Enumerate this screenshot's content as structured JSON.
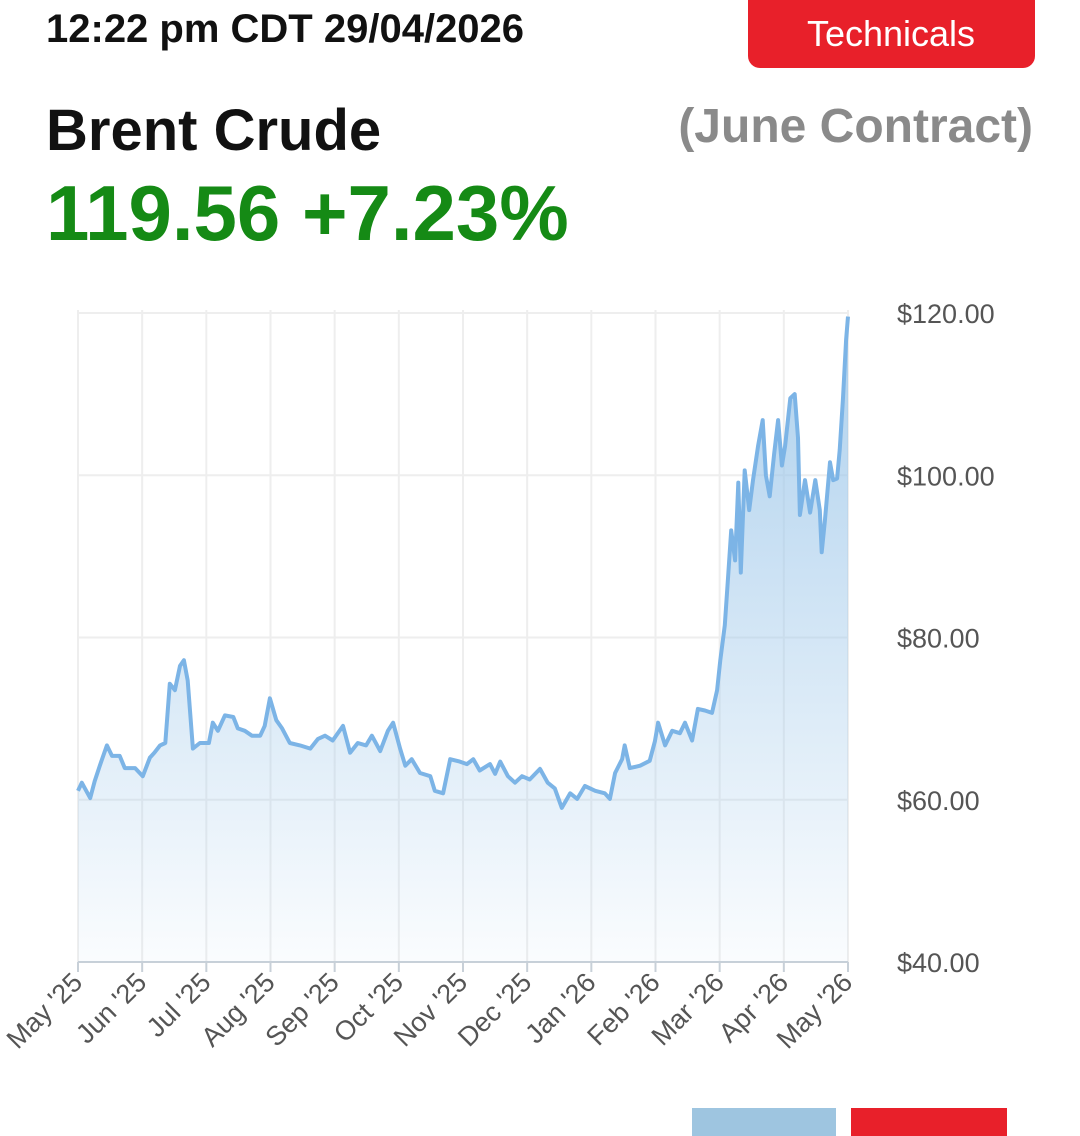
{
  "header": {
    "time": "12:22 pm CDT 29/04/2026",
    "button": "Technicals",
    "title": "Brent Crude",
    "contract": "(June Contract)",
    "price": "119.56",
    "change": "+7.23%"
  },
  "chart_data": {
    "type": "area",
    "color": "#7cb4e6",
    "grid": true,
    "x": [
      0,
      0.06,
      0.19,
      0.26,
      0.34,
      0.45,
      0.53,
      0.65,
      0.73,
      0.89,
      1.01,
      1.12,
      1.19,
      1.28,
      1.36,
      1.43,
      1.51,
      1.59,
      1.65,
      1.71,
      1.79,
      1.9,
      2.04,
      2.1,
      2.18,
      2.29,
      2.42,
      2.49,
      2.6,
      2.71,
      2.84,
      2.91,
      2.99,
      3.09,
      3.18,
      3.3,
      3.46,
      3.62,
      3.74,
      3.85,
      3.97,
      4.13,
      4.24,
      4.36,
      4.49,
      4.58,
      4.71,
      4.83,
      4.91,
      5.02,
      5.1,
      5.2,
      5.33,
      5.49,
      5.56,
      5.69,
      5.8,
      5.95,
      6.06,
      6.16,
      6.26,
      6.42,
      6.5,
      6.58,
      6.7,
      6.81,
      6.92,
      7.04,
      7.2,
      7.32,
      7.43,
      7.54,
      7.67,
      7.78,
      7.9,
      8.06,
      8.21,
      8.29,
      8.37,
      8.48,
      8.52,
      8.6,
      8.76,
      8.91,
      8.99,
      9.04,
      9.15,
      9.26,
      9.38,
      9.46,
      9.57,
      9.66,
      9.77,
      9.88,
      9.96,
      10.01,
      10.08,
      10.13,
      10.18,
      10.24,
      10.29,
      10.33,
      10.39,
      10.46,
      10.52,
      10.6,
      10.67,
      10.72,
      10.78,
      10.85,
      10.91,
      10.97,
      11.02,
      11.1,
      11.17,
      11.22,
      11.25,
      11.33,
      11.41,
      11.49,
      11.56,
      11.59,
      11.64,
      11.72,
      11.77,
      11.83,
      11.87,
      11.92,
      11.97,
      12
    ],
    "values": [
      61.1,
      62.1,
      60.2,
      62.3,
      64.2,
      66.7,
      65.4,
      65.4,
      63.9,
      63.9,
      62.9,
      65.2,
      65.8,
      66.7,
      67.0,
      74.3,
      73.5,
      76.5,
      77.2,
      74.7,
      66.3,
      67.0,
      67.0,
      69.5,
      68.5,
      70.4,
      70.2,
      68.8,
      68.5,
      67.9,
      67.9,
      69.1,
      72.5,
      69.8,
      68.8,
      67.0,
      66.7,
      66.3,
      67.5,
      67.9,
      67.3,
      69.1,
      65.8,
      67.0,
      66.7,
      67.9,
      66.0,
      68.5,
      69.5,
      66.3,
      64.2,
      65.0,
      63.3,
      62.9,
      61.1,
      60.8,
      65.0,
      64.7,
      64.4,
      65.0,
      63.6,
      64.4,
      63.2,
      64.7,
      62.9,
      62.1,
      62.9,
      62.5,
      63.8,
      62.1,
      61.4,
      59.0,
      60.8,
      60.1,
      61.7,
      61.1,
      60.8,
      60.1,
      63.3,
      65.0,
      66.7,
      63.9,
      64.2,
      64.8,
      67.2,
      69.5,
      66.7,
      68.5,
      68.2,
      69.5,
      67.3,
      71.2,
      71.0,
      70.7,
      73.5,
      77.2,
      81.5,
      87.3,
      93.2,
      89.5,
      99.1,
      88.0,
      100.6,
      95.7,
      99.4,
      103.7,
      106.8,
      100.0,
      97.4,
      102.7,
      106.8,
      101.2,
      103.6,
      109.5,
      110.0,
      104.6,
      95.1,
      99.4,
      95.4,
      99.4,
      95.7,
      90.5,
      94.4,
      101.6,
      99.4,
      99.6,
      103.1,
      109.3,
      116.7,
      119.56
    ],
    "xlim": [
      0,
      12
    ],
    "xticks": [
      {
        "value": 0,
        "label": "May '25"
      },
      {
        "value": 1,
        "label": "Jun '25"
      },
      {
        "value": 2,
        "label": "Jul '25"
      },
      {
        "value": 3,
        "label": "Aug '25"
      },
      {
        "value": 4,
        "label": "Sep '25"
      },
      {
        "value": 5,
        "label": "Oct '25"
      },
      {
        "value": 6,
        "label": "Nov '25"
      },
      {
        "value": 7,
        "label": "Dec '25"
      },
      {
        "value": 8,
        "label": "Jan '26"
      },
      {
        "value": 9,
        "label": "Feb '26"
      },
      {
        "value": 10,
        "label": "Mar '26"
      },
      {
        "value": 11,
        "label": "Apr '26"
      },
      {
        "value": 12,
        "label": "May '26"
      }
    ],
    "ylim": [
      40,
      120
    ],
    "yticks": [
      {
        "value": 40,
        "label": "$40.00"
      },
      {
        "value": 60,
        "label": "$60.00"
      },
      {
        "value": 80,
        "label": "$80.00"
      },
      {
        "value": 100,
        "label": "$100.00"
      },
      {
        "value": 120,
        "label": "$120.00"
      }
    ]
  }
}
